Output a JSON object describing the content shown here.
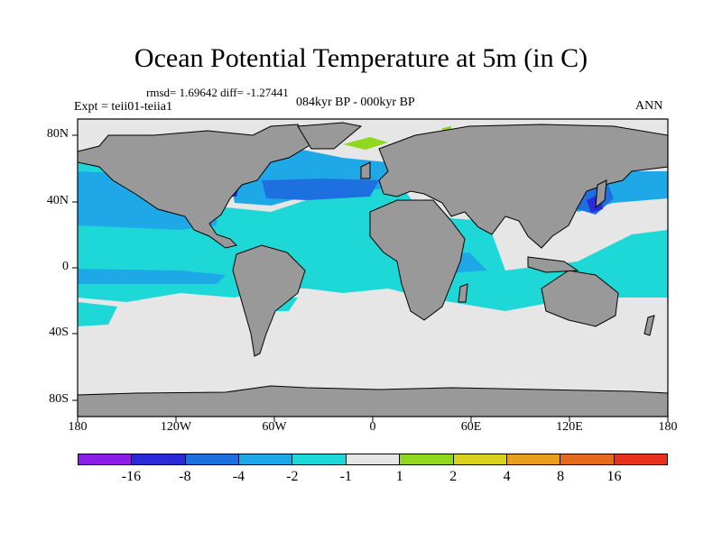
{
  "title": "Ocean Potential Temperature at 5m (in C)",
  "stats": "rmsd= 1.69642  diff= -1.27441",
  "left_label": "Expt = teii01-teiia1",
  "center_label": "084kyr BP - 000kyr BP",
  "right_label": "ANN",
  "lat_labels": [
    "80N",
    "40N",
    "0",
    "40S",
    "80S"
  ],
  "lon_labels": [
    "180",
    "120W",
    "60W",
    "0",
    "60E",
    "120E",
    "180"
  ],
  "colorbar": {
    "colors": [
      "#8a1ee6",
      "#2a2ad8",
      "#1e6fe0",
      "#1ea8e8",
      "#1ed8d8",
      "#e6e6e6",
      "#8fd81e",
      "#d8d21e",
      "#e6a01e",
      "#e66a1e",
      "#e6321e"
    ],
    "labels": [
      "-16",
      "-8",
      "-4",
      "-2",
      "-1",
      "1",
      "2",
      "4",
      "8",
      "16"
    ]
  },
  "map_colors": {
    "land": "#999999",
    "no_change": "#e6e6e6",
    "cool_1": "#1ed8d8",
    "cool_2": "#1ea8e8",
    "cool_4": "#1e6fe0",
    "cool_8": "#2a2ad8",
    "warm_2": "#8fd81e"
  }
}
